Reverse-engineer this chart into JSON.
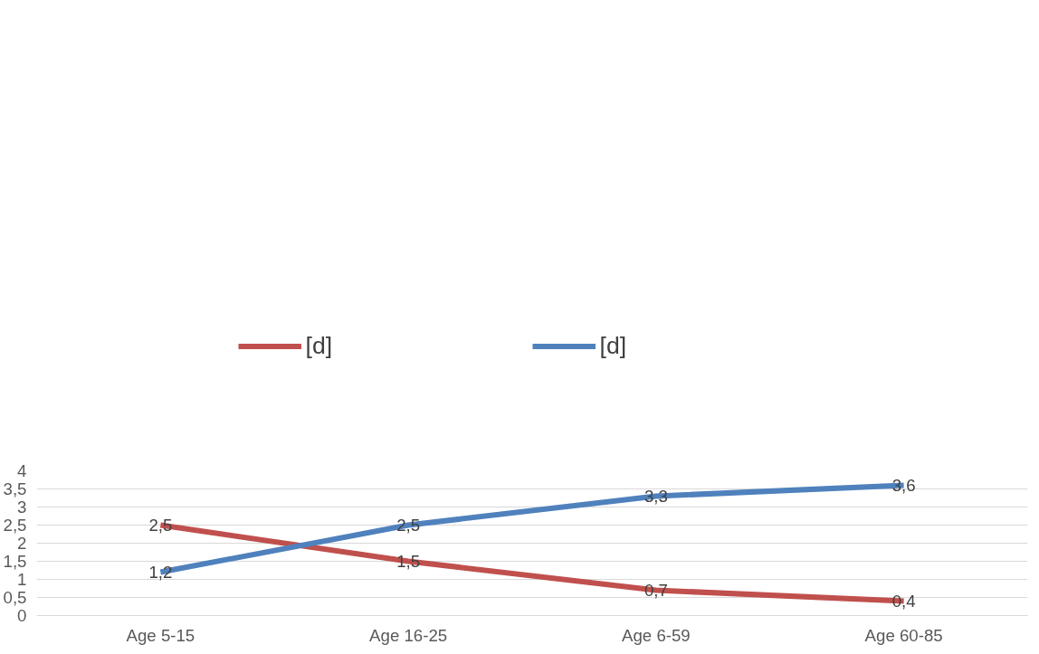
{
  "chart_data": {
    "type": "line",
    "categories": [
      "Age 5-15",
      "Age 16-25",
      "Age 6-59",
      "Age 60-85"
    ],
    "series": [
      {
        "name": "[d]",
        "color": "#c0504d",
        "values": [
          2.5,
          1.5,
          0.7,
          0.4
        ],
        "value_labels": [
          "2,5",
          "1,5",
          "0,7",
          "0,4"
        ]
      },
      {
        "name": "[d]",
        "color": "#4f81bd",
        "values": [
          1.2,
          2.5,
          3.3,
          3.6
        ],
        "value_labels": [
          "1,2",
          "2,5",
          "3,3",
          "3,6"
        ]
      }
    ],
    "ylim": [
      0,
      4
    ],
    "yticks": [
      0,
      {
        "value": 0.5,
        "label": "0,5"
      },
      1,
      {
        "value": 1.5,
        "label": "1,5"
      },
      2,
      {
        "value": 2.5,
        "label": "2,5"
      },
      3,
      {
        "value": 3.5,
        "label": "3,5"
      },
      4
    ],
    "grid": "y",
    "legend": "top",
    "line_style": "solid"
  }
}
